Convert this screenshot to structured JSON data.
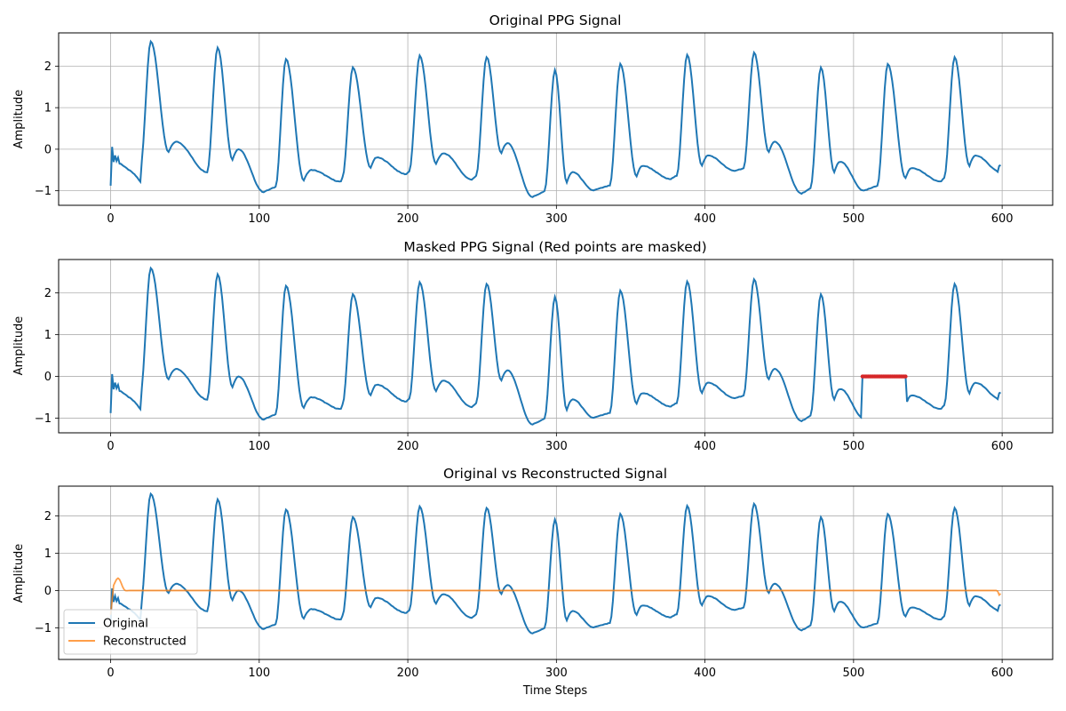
{
  "colors": {
    "original": "#1f77b4",
    "reconstructed": "#ff7f0e",
    "masked": "#d62728",
    "grid": "#b0b0b0",
    "axes": "#000000"
  },
  "chart_data": [
    {
      "type": "line",
      "title": "Original PPG Signal",
      "xlabel": "",
      "ylabel": "Amplitude",
      "xlim": [
        -35,
        634
      ],
      "ylim": [
        -1.35,
        2.8
      ],
      "xticks": [
        0,
        100,
        200,
        300,
        400,
        500,
        600
      ],
      "yticks": [
        -1,
        0,
        1,
        2
      ],
      "grid": true,
      "legend": "none",
      "signal": {
        "length": 600,
        "beat_peaks_x": [
          27,
          72,
          118,
          163,
          208,
          253,
          299,
          343,
          388,
          433,
          478,
          523,
          568
        ],
        "beat_peaks_y": [
          2.6,
          2.45,
          2.17,
          1.97,
          2.25,
          2.22,
          1.9,
          2.05,
          2.27,
          2.33,
          1.97,
          2.05,
          2.22
        ],
        "troughs_x": [
          0,
          20,
          65,
          103,
          155,
          199,
          243,
          284,
          325,
          377,
          420,
          465,
          507,
          559,
          597
        ],
        "troughs_y": [
          -0.87,
          -0.45,
          -0.55,
          -1.03,
          -0.78,
          -0.6,
          -0.73,
          -1.15,
          -0.99,
          -0.72,
          -0.52,
          -1.07,
          -1.0,
          -0.78,
          -0.55
        ],
        "dicrotic_notch_y": [
          0.18,
          0.0,
          -0.5,
          -0.2,
          -0.1,
          0.15,
          -0.55,
          -0.4,
          -0.15,
          0.18,
          -0.3,
          -0.45,
          -0.15,
          0.13
        ]
      },
      "series": [
        {
          "name": "Original",
          "color": "#1f77b4",
          "mask": "none"
        }
      ]
    },
    {
      "type": "line",
      "title": "Masked PPG Signal (Red points are masked)",
      "xlabel": "",
      "ylabel": "Amplitude",
      "xlim": [
        -35,
        634
      ],
      "ylim": [
        -1.35,
        2.8
      ],
      "xticks": [
        0,
        100,
        200,
        300,
        400,
        500,
        600
      ],
      "yticks": [
        -1,
        0,
        1,
        2
      ],
      "grid": true,
      "legend": "none",
      "series": [
        {
          "name": "Original",
          "color": "#1f77b4",
          "mask": "zeroed"
        },
        {
          "name": "Masked",
          "color": "#d62728",
          "x_range": [
            506,
            535
          ],
          "value": 0
        }
      ]
    },
    {
      "type": "line",
      "title": "Original vs Reconstructed Signal",
      "xlabel": "Time Steps",
      "ylabel": "Amplitude",
      "xlim": [
        -35,
        634
      ],
      "ylim": [
        -1.85,
        2.8
      ],
      "xticks": [
        0,
        100,
        200,
        300,
        400,
        500,
        600
      ],
      "yticks": [
        -1,
        0,
        1,
        2
      ],
      "grid": true,
      "legend": "lower-left",
      "series": [
        {
          "name": "Original",
          "color": "#1f77b4",
          "mask": "none"
        },
        {
          "name": "Reconstructed",
          "color": "#ff7f0e",
          "baseline": 0.0,
          "start": -0.65,
          "bump_x": 5,
          "bump_y": 0.33,
          "end_y": -0.12
        }
      ]
    }
  ]
}
